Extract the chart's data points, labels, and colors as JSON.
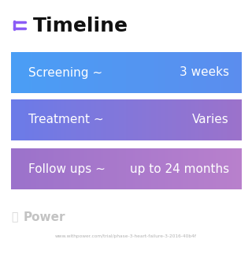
{
  "title": "Timeline",
  "title_icon_color": "#8B5CF6",
  "background_color": "#ffffff",
  "rows": [
    {
      "label_left": "Screening ~",
      "label_right": "3 weeks",
      "color_left": "#4A9EF5",
      "color_right": "#5B8DEE"
    },
    {
      "label_left": "Treatment ~",
      "label_right": "Varies",
      "color_left": "#6B7BE8",
      "color_right": "#9B72CB"
    },
    {
      "label_left": "Follow ups ~",
      "label_right": "up to 24 months",
      "color_left": "#9B72CB",
      "color_right": "#B07FCC"
    }
  ],
  "watermark_text": "Power",
  "url_text": "www.withpower.com/trial/phase-3-heart-failure-3-2016-40b4f",
  "url_color": "#aaaaaa",
  "watermark_color": "#aaaaaa"
}
